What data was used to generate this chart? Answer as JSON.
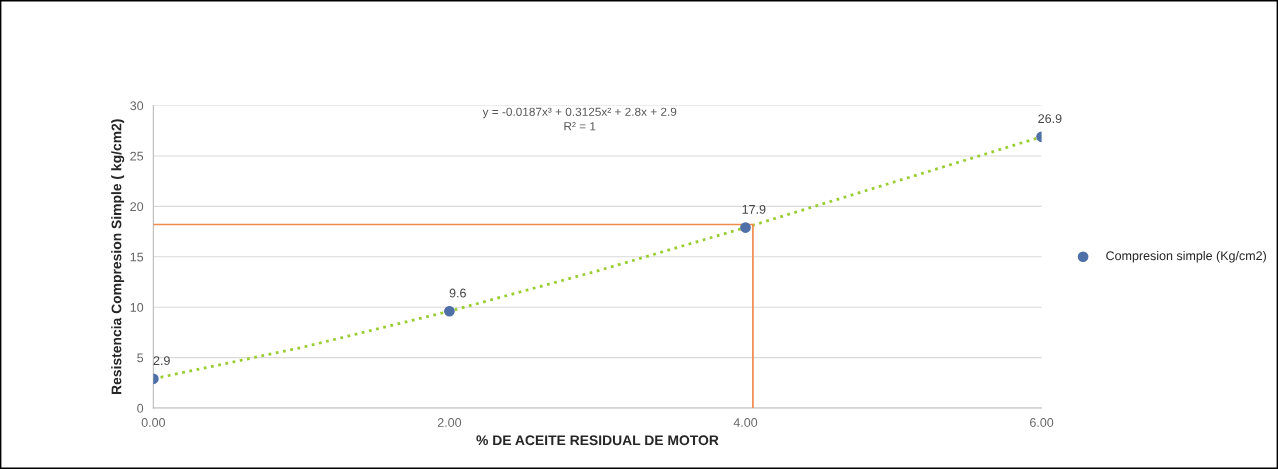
{
  "chart_data": {
    "type": "scatter",
    "xlabel": "% DE ACEITE RESIDUAL DE MOTOR",
    "ylabel": "Resistencia Compresion Simple ( kg/cm2)",
    "x": [
      0,
      2,
      4,
      6
    ],
    "series": [
      {
        "name": "Compresion simple (Kg/cm2)",
        "color": "#4f6fa8",
        "values": [
          2.9,
          9.6,
          17.9,
          26.9
        ],
        "value_labels": [
          "2.9",
          "9.6",
          "17.9",
          "26.9"
        ],
        "marker": "circle"
      },
      {
        "type": "line",
        "color": "#9acd32",
        "line_style": "dotted",
        "x": [
          0,
          1,
          2,
          3,
          4,
          5,
          6
        ],
        "values": [
          2.9,
          6.0,
          9.6,
          13.6,
          17.9,
          22.4,
          26.9
        ]
      },
      {
        "type": "line",
        "color": "#f08a4b",
        "line_style": "solid",
        "x": [
          0,
          4.05,
          4.05
        ],
        "values": [
          18.2,
          18.2,
          0
        ]
      }
    ],
    "annotations": [
      "y = -0.0187x³ + 0.3125x² + 2.8x + 2.9\nR² = 1"
    ],
    "xlim": [
      0,
      6
    ],
    "xticks": [
      {
        "value": 0,
        "label": "0.00"
      },
      {
        "value": 2,
        "label": "2.00"
      },
      {
        "value": 4,
        "label": "4.00"
      },
      {
        "value": 6,
        "label": "6.00"
      }
    ],
    "ylim": [
      0,
      30
    ],
    "yticks": [
      0,
      5,
      10,
      15,
      20,
      25,
      30
    ],
    "grid": "y",
    "legend": "right"
  }
}
